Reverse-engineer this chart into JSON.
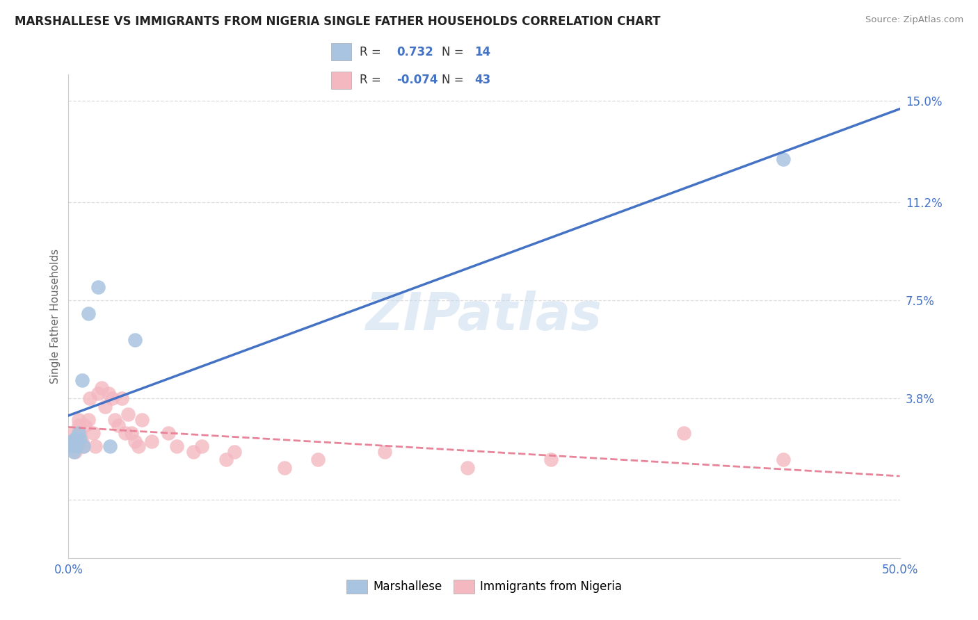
{
  "title": "MARSHALLESE VS IMMIGRANTS FROM NIGERIA SINGLE FATHER HOUSEHOLDS CORRELATION CHART",
  "source": "Source: ZipAtlas.com",
  "ylabel": "Single Father Households",
  "xlim": [
    0.0,
    0.5
  ],
  "ylim": [
    -0.022,
    0.16
  ],
  "ytick_vals": [
    0.0,
    0.038,
    0.075,
    0.112,
    0.15
  ],
  "ytick_labels": [
    "",
    "3.8%",
    "7.5%",
    "11.2%",
    "15.0%"
  ],
  "background_color": "#ffffff",
  "marshallese_color": "#a8c4e0",
  "nigeria_color": "#f4b8c1",
  "line_marshallese_color": "#4472c4",
  "line_nigeria_color": "#e8849a",
  "R_marshallese": 0.732,
  "N_marshallese": 14,
  "R_nigeria": -0.074,
  "N_nigeria": 43,
  "marshallese_x": [
    0.001,
    0.002,
    0.003,
    0.004,
    0.005,
    0.006,
    0.007,
    0.008,
    0.009,
    0.012,
    0.018,
    0.025,
    0.04,
    0.43
  ],
  "marshallese_y": [
    0.02,
    0.022,
    0.018,
    0.023,
    0.02,
    0.025,
    0.023,
    0.045,
    0.02,
    0.07,
    0.08,
    0.02,
    0.06,
    0.128
  ],
  "nigeria_x": [
    0.001,
    0.002,
    0.003,
    0.004,
    0.005,
    0.006,
    0.006,
    0.007,
    0.008,
    0.009,
    0.01,
    0.012,
    0.013,
    0.015,
    0.016,
    0.018,
    0.02,
    0.022,
    0.024,
    0.026,
    0.028,
    0.03,
    0.032,
    0.034,
    0.036,
    0.038,
    0.04,
    0.042,
    0.044,
    0.05,
    0.06,
    0.065,
    0.075,
    0.08,
    0.095,
    0.1,
    0.13,
    0.15,
    0.19,
    0.24,
    0.29,
    0.37,
    0.43
  ],
  "nigeria_y": [
    0.02,
    0.022,
    0.025,
    0.018,
    0.02,
    0.03,
    0.028,
    0.025,
    0.022,
    0.02,
    0.028,
    0.03,
    0.038,
    0.025,
    0.02,
    0.04,
    0.042,
    0.035,
    0.04,
    0.038,
    0.03,
    0.028,
    0.038,
    0.025,
    0.032,
    0.025,
    0.022,
    0.02,
    0.03,
    0.022,
    0.025,
    0.02,
    0.018,
    0.02,
    0.015,
    0.018,
    0.012,
    0.015,
    0.018,
    0.012,
    0.015,
    0.025,
    0.015
  ],
  "grid_color": "#dddddd",
  "tick_color": "#4472c4",
  "label_fontsize": 11,
  "title_fontsize": 12
}
